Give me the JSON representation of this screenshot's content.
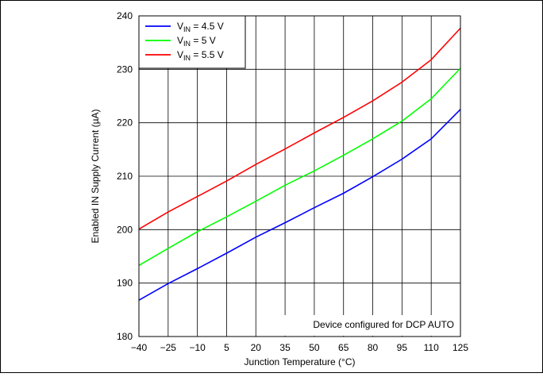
{
  "chart_data": {
    "type": "line",
    "title": "",
    "xlabel": "Junction Temperature (°C)",
    "ylabel": "Enabled IN Supply Current (µA)",
    "xlim": [
      -40,
      125
    ],
    "ylim": [
      180,
      240
    ],
    "x_ticks": [
      -40,
      -25,
      -10,
      5,
      20,
      35,
      50,
      65,
      80,
      95,
      110,
      125
    ],
    "y_ticks": [
      180,
      190,
      200,
      210,
      220,
      230,
      240
    ],
    "grid": true,
    "legend_position": "top-left",
    "x": [
      -40,
      -25,
      -10,
      5,
      20,
      35,
      50,
      65,
      80,
      95,
      110,
      125
    ],
    "series": [
      {
        "legend_main": "V",
        "legend_sub": "IN",
        "legend_suffix": " = 4.5 V",
        "color": "#0000ff",
        "values": [
          186.8,
          189.9,
          192.7,
          195.6,
          198.6,
          201.3,
          204.1,
          206.8,
          209.9,
          213.2,
          217.0,
          222.5
        ]
      },
      {
        "legend_main": "V",
        "legend_sub": "IN",
        "legend_suffix": " = 5 V",
        "color": "#00ff00",
        "values": [
          193.3,
          196.5,
          199.6,
          202.4,
          205.3,
          208.3,
          211.0,
          213.9,
          217.0,
          220.3,
          224.5,
          230.2
        ]
      },
      {
        "legend_main": "V",
        "legend_sub": "IN",
        "legend_suffix": " = 5.5 V",
        "color": "#ff0000",
        "values": [
          200.1,
          203.3,
          206.2,
          209.1,
          212.2,
          215.1,
          218.1,
          221.0,
          224.1,
          227.6,
          231.8,
          237.7
        ]
      }
    ],
    "annotation": "Device configured for DCP AUTO"
  }
}
